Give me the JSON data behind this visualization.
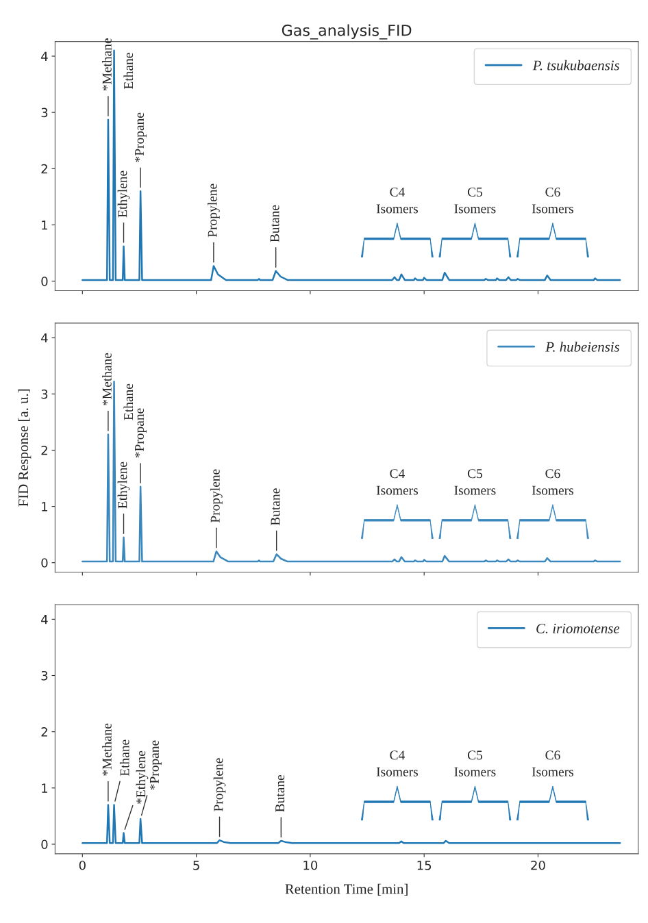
{
  "chart_data": [
    {
      "type": "line",
      "title": "Gas_analysis_FID",
      "xlim": [
        -1.2,
        24.4
      ],
      "ylim": [
        -0.17,
        4.26
      ],
      "xticks": [
        0,
        5,
        10,
        15,
        20
      ],
      "yticks": [
        0,
        1,
        2,
        3,
        4
      ],
      "tick_labels": "y",
      "grid": false,
      "legend": "top right",
      "series": [
        {
          "name": "P. tsukubaensis",
          "color": "#1f77b4",
          "x": [
            0,
            1.08,
            1.13,
            1.2,
            1.34,
            1.39,
            1.46,
            1.77,
            1.81,
            1.86,
            2.5,
            2.55,
            2.62,
            5.65,
            5.76,
            5.95,
            6.3,
            7.7,
            7.75,
            7.8,
            8.35,
            8.49,
            8.7,
            9.0,
            13.6,
            13.7,
            13.8,
            13.9,
            14.0,
            14.15,
            14.55,
            14.6,
            14.7,
            14.95,
            15.0,
            15.1,
            15.8,
            15.9,
            16.1,
            17.65,
            17.7,
            17.8,
            18.15,
            18.2,
            18.3,
            18.6,
            18.7,
            18.8,
            19.05,
            19.1,
            19.2,
            20.3,
            20.4,
            20.55,
            22.45,
            22.5,
            22.6,
            23.6
          ],
          "values": [
            0.02,
            0.02,
            2.87,
            0.02,
            0.02,
            4.1,
            0.02,
            0.02,
            0.62,
            0.02,
            0.02,
            1.6,
            0.02,
            0.02,
            0.27,
            0.12,
            0.02,
            0.02,
            0.04,
            0.02,
            0.02,
            0.18,
            0.08,
            0.02,
            0.02,
            0.07,
            0.02,
            0.02,
            0.12,
            0.02,
            0.02,
            0.05,
            0.02,
            0.02,
            0.06,
            0.02,
            0.02,
            0.15,
            0.02,
            0.02,
            0.04,
            0.02,
            0.02,
            0.05,
            0.02,
            0.02,
            0.07,
            0.02,
            0.02,
            0.04,
            0.02,
            0.02,
            0.1,
            0.02,
            0.02,
            0.05,
            0.02,
            0.02
          ]
        }
      ],
      "annotations": [
        {
          "text": "*Methane",
          "x": 1.13,
          "y": 2.87
        },
        {
          "text": "Ethane",
          "x": 1.39,
          "y": 4.1
        },
        {
          "text": "Ethylene",
          "x": 1.81,
          "y": 0.62
        },
        {
          "text": "*Propane",
          "x": 2.55,
          "y": 1.6
        },
        {
          "text": "Propylene",
          "x": 5.76,
          "y": 0.27
        },
        {
          "text": "Butane",
          "x": 8.49,
          "y": 0.18
        },
        "C4\nIsomers",
        "C5\nIsomers",
        "C6\nIsomers"
      ]
    },
    {
      "type": "line",
      "ylabel": "FID Response [a. u.]",
      "xlim": [
        -1.2,
        24.4
      ],
      "ylim": [
        -0.17,
        4.26
      ],
      "xticks": [
        0,
        5,
        10,
        15,
        20
      ],
      "yticks": [
        0,
        1,
        2,
        3,
        4
      ],
      "tick_labels": "y",
      "grid": false,
      "legend": "top right",
      "series": [
        {
          "name": "P. hubeiensis",
          "color": "#3a87bd",
          "x": [
            0,
            1.08,
            1.13,
            1.2,
            1.34,
            1.39,
            1.46,
            1.77,
            1.81,
            1.86,
            2.5,
            2.55,
            2.62,
            5.75,
            5.88,
            6.05,
            6.4,
            7.7,
            7.75,
            7.8,
            8.38,
            8.52,
            8.72,
            9.0,
            13.6,
            13.7,
            13.8,
            13.9,
            14.0,
            14.15,
            14.55,
            14.6,
            14.7,
            14.95,
            15.0,
            15.1,
            15.8,
            15.9,
            16.1,
            17.65,
            17.7,
            17.8,
            18.15,
            18.2,
            18.3,
            18.6,
            18.7,
            18.8,
            19.05,
            19.1,
            19.2,
            20.3,
            20.4,
            20.55,
            22.45,
            22.5,
            22.6,
            23.6
          ],
          "values": [
            0.02,
            0.02,
            2.28,
            0.02,
            0.02,
            3.22,
            0.02,
            0.02,
            0.45,
            0.02,
            0.02,
            1.35,
            0.02,
            0.02,
            0.2,
            0.1,
            0.02,
            0.02,
            0.04,
            0.02,
            0.02,
            0.15,
            0.07,
            0.02,
            0.02,
            0.06,
            0.02,
            0.02,
            0.1,
            0.02,
            0.02,
            0.04,
            0.02,
            0.02,
            0.05,
            0.02,
            0.02,
            0.12,
            0.02,
            0.02,
            0.04,
            0.02,
            0.02,
            0.04,
            0.02,
            0.02,
            0.06,
            0.02,
            0.02,
            0.04,
            0.02,
            0.02,
            0.08,
            0.02,
            0.02,
            0.04,
            0.02,
            0.02
          ]
        }
      ],
      "annotations": [
        {
          "text": "*Methane",
          "x": 1.13,
          "y": 2.28
        },
        {
          "text": "Ethane",
          "x": 1.39,
          "y": 3.22
        },
        {
          "text": "Ethylene",
          "x": 1.81,
          "y": 0.45
        },
        {
          "text": "*Propane",
          "x": 2.55,
          "y": 1.35
        },
        {
          "text": "Propylene",
          "x": 5.88,
          "y": 0.2
        },
        {
          "text": "Butane",
          "x": 8.52,
          "y": 0.15
        },
        "C4\nIsomers",
        "C5\nIsomers",
        "C6\nIsomers"
      ]
    },
    {
      "type": "line",
      "xlabel": "Retention Time [min]",
      "xlim": [
        -1.2,
        24.4
      ],
      "ylim": [
        -0.17,
        4.26
      ],
      "xticks": [
        0,
        5,
        10,
        15,
        20
      ],
      "yticks": [
        0,
        1,
        2,
        3,
        4
      ],
      "grid": false,
      "legend": "top right",
      "series": [
        {
          "name": "C. iriomotense",
          "color": "#1f77b4",
          "x": [
            0,
            1.08,
            1.13,
            1.2,
            1.34,
            1.39,
            1.46,
            1.77,
            1.81,
            1.86,
            2.5,
            2.55,
            2.62,
            5.9,
            6.02,
            6.2,
            6.5,
            8.6,
            8.72,
            8.9,
            9.2,
            13.9,
            14.0,
            14.1,
            15.85,
            15.95,
            16.1,
            23.6
          ],
          "values": [
            0.02,
            0.02,
            0.7,
            0.02,
            0.02,
            0.7,
            0.02,
            0.02,
            0.2,
            0.02,
            0.02,
            0.45,
            0.02,
            0.02,
            0.07,
            0.04,
            0.02,
            0.02,
            0.06,
            0.04,
            0.02,
            0.02,
            0.05,
            0.02,
            0.02,
            0.06,
            0.02,
            0.02
          ]
        }
      ],
      "annotations": [
        {
          "text": "*Methane",
          "x": 1.13,
          "y": 0.7
        },
        {
          "text": "Ethane",
          "x": 1.39,
          "y": 0.7
        },
        {
          "text": "*Ethylene",
          "x": 1.81,
          "y": 0.2
        },
        {
          "text": "*Propane",
          "x": 2.55,
          "y": 0.45
        },
        {
          "text": "Propylene",
          "x": 6.02,
          "y": 0.07
        },
        {
          "text": "Butane",
          "x": 8.72,
          "y": 0.06
        },
        "C4\nIsomers",
        "C5\nIsomers",
        "C6\nIsomers"
      ]
    }
  ]
}
